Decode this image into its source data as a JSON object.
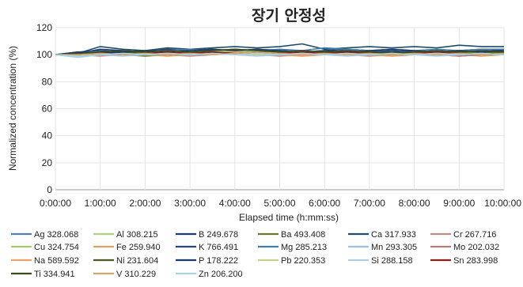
{
  "chart_data": {
    "type": "line",
    "title": "장기 안정성",
    "xlabel": "Elapsed time (h:mm:ss)",
    "ylabel": "Normalized concentration (%)",
    "x_ticks": [
      "0:00:00",
      "1:00:00",
      "2:00:00",
      "3:00:00",
      "4:00:00",
      "5:00:00",
      "6:00:00",
      "7:00:00",
      "8:00:00",
      "9:00:00",
      "10:00:00"
    ],
    "y_ticks": [
      0,
      20,
      40,
      60,
      80,
      100,
      120
    ],
    "xlim_hours": [
      0,
      10
    ],
    "ylim": [
      0,
      120
    ],
    "grid": true,
    "legend_position": "bottom",
    "x_hours": [
      0,
      0.5,
      1,
      1.5,
      2,
      2.5,
      3,
      3.5,
      4,
      4.5,
      5,
      5.5,
      6,
      6.5,
      7,
      7.5,
      8,
      8.5,
      9,
      9.5,
      10
    ],
    "series": [
      {
        "name": "Ag 328.068",
        "color": "#4f7fb5",
        "values": [
          100,
          99,
          102,
          101,
          100,
          101,
          102,
          101,
          102,
          101,
          100,
          101,
          100,
          102,
          101,
          100,
          101,
          100,
          101,
          100,
          101
        ]
      },
      {
        "name": "Al 308.215",
        "color": "#b7cf7a",
        "values": [
          100,
          101,
          103,
          102,
          101,
          102,
          103,
          102,
          103,
          102,
          101,
          102,
          101,
          102,
          101,
          100,
          102,
          101,
          100,
          101,
          102
        ]
      },
      {
        "name": "B 249.678",
        "color": "#1f3a7a",
        "values": [
          100,
          101,
          104,
          103,
          102,
          103,
          104,
          103,
          104,
          103,
          102,
          103,
          102,
          103,
          102,
          103,
          102,
          103,
          102,
          101,
          102
        ]
      },
      {
        "name": "Ba 493.408",
        "color": "#6b7a2a",
        "values": [
          100,
          100,
          101,
          100,
          99,
          100,
          101,
          100,
          101,
          102,
          101,
          100,
          101,
          100,
          101,
          100,
          101,
          100,
          101,
          102,
          101
        ]
      },
      {
        "name": "Ca 317.933",
        "color": "#1d4d6b",
        "values": [
          100,
          101,
          106,
          104,
          103,
          105,
          104,
          105,
          106,
          105,
          106,
          108,
          104,
          105,
          106,
          105,
          106,
          105,
          107,
          106,
          106
        ]
      },
      {
        "name": "Cr 267.716",
        "color": "#c08a8a",
        "values": [
          100,
          100,
          99,
          100,
          101,
          100,
          99,
          100,
          101,
          100,
          99,
          100,
          101,
          100,
          99,
          100,
          101,
          100,
          99,
          100,
          100
        ]
      },
      {
        "name": "Cu 324.754",
        "color": "#a8c66c",
        "values": [
          100,
          101,
          102,
          101,
          102,
          103,
          102,
          103,
          102,
          103,
          102,
          101,
          102,
          103,
          102,
          101,
          102,
          101,
          102,
          103,
          102
        ]
      },
      {
        "name": "Fe 259.940",
        "color": "#e0a060",
        "values": [
          100,
          99,
          100,
          101,
          100,
          99,
          100,
          101,
          100,
          101,
          100,
          99,
          100,
          101,
          100,
          99,
          100,
          101,
          100,
          99,
          100
        ]
      },
      {
        "name": "K 766.491",
        "color": "#26467e",
        "values": [
          100,
          102,
          103,
          102,
          103,
          104,
          103,
          104,
          103,
          104,
          103,
          102,
          103,
          104,
          103,
          102,
          103,
          102,
          103,
          104,
          103
        ]
      },
      {
        "name": "Mg 285.213",
        "color": "#3f7fb0",
        "values": [
          100,
          101,
          102,
          103,
          102,
          103,
          104,
          103,
          104,
          103,
          104,
          103,
          105,
          104,
          103,
          104,
          103,
          104,
          103,
          104,
          104
        ]
      },
      {
        "name": "Mn 293.305",
        "color": "#9cc0dc",
        "values": [
          100,
          99,
          100,
          101,
          100,
          101,
          100,
          101,
          102,
          101,
          100,
          101,
          100,
          101,
          100,
          101,
          100,
          101,
          100,
          101,
          100
        ]
      },
      {
        "name": "Mo 202.032",
        "color": "#b87a7a",
        "values": [
          100,
          100,
          101,
          100,
          101,
          100,
          101,
          102,
          101,
          100,
          101,
          100,
          101,
          100,
          101,
          100,
          101,
          100,
          99,
          100,
          101
        ]
      },
      {
        "name": "Na 589.592",
        "color": "#f0a070",
        "values": [
          100,
          101,
          102,
          101,
          100,
          101,
          102,
          101,
          102,
          101,
          100,
          99,
          100,
          101,
          100,
          99,
          100,
          101,
          100,
          101,
          100
        ]
      },
      {
        "name": "Ni 231.604",
        "color": "#4a5a22",
        "values": [
          100,
          100,
          101,
          102,
          101,
          100,
          101,
          102,
          101,
          102,
          103,
          102,
          101,
          102,
          101,
          102,
          101,
          102,
          103,
          102,
          102
        ]
      },
      {
        "name": "P 178.222",
        "color": "#1c3a6e",
        "values": [
          100,
          102,
          101,
          102,
          103,
          102,
          103,
          104,
          103,
          104,
          103,
          102,
          103,
          102,
          103,
          104,
          103,
          102,
          103,
          102,
          103
        ]
      },
      {
        "name": "Pb 220.353",
        "color": "#c3d58c",
        "values": [
          100,
          99,
          101,
          100,
          101,
          102,
          101,
          100,
          101,
          100,
          101,
          102,
          101,
          100,
          101,
          100,
          101,
          102,
          101,
          100,
          101
        ]
      },
      {
        "name": "Si 288.158",
        "color": "#b0cde4",
        "values": [
          100,
          98,
          100,
          99,
          100,
          101,
          100,
          101,
          100,
          99,
          100,
          101,
          100,
          99,
          100,
          101,
          100,
          99,
          100,
          101,
          100
        ]
      },
      {
        "name": "Sn 283.998",
        "color": "#8a1f1f",
        "values": [
          100,
          100,
          101,
          100,
          101,
          102,
          101,
          102,
          101,
          102,
          101,
          102,
          101,
          102,
          101,
          100,
          101,
          102,
          101,
          100,
          101
        ]
      },
      {
        "name": "Ti 334.941",
        "color": "#3a4a18",
        "values": [
          100,
          101,
          102,
          103,
          102,
          103,
          102,
          103,
          104,
          103,
          102,
          103,
          102,
          103,
          102,
          101,
          102,
          103,
          102,
          103,
          102
        ]
      },
      {
        "name": "V 310.229",
        "color": "#d4a86a",
        "values": [
          100,
          100,
          101,
          100,
          101,
          100,
          101,
          100,
          101,
          102,
          101,
          100,
          101,
          100,
          101,
          100,
          101,
          100,
          101,
          100,
          101
        ]
      },
      {
        "name": "Zn 206.200",
        "color": "#a8d4e0",
        "values": [
          100,
          99,
          100,
          101,
          100,
          101,
          100,
          101,
          100,
          101,
          100,
          101,
          100,
          101,
          100,
          101,
          100,
          101,
          100,
          101,
          100
        ]
      }
    ]
  }
}
